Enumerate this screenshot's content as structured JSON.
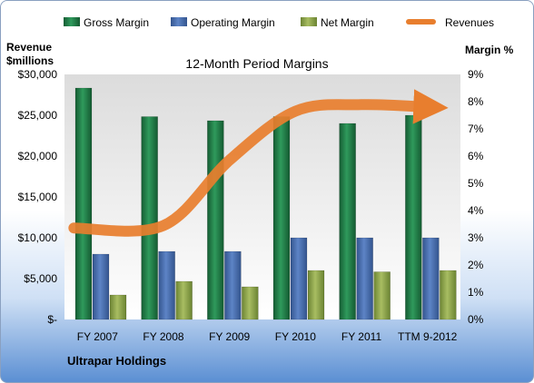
{
  "chart_data": {
    "type": "bar",
    "title": "12-Month Period Margins",
    "footer": "Ultrapar Holdings",
    "left_axis": {
      "label_line1": "Revenue",
      "label_line2": "$millions",
      "ticks": [
        "$-",
        "$5,000",
        "$10,000",
        "$15,000",
        "$20,000",
        "$25,000",
        "$30,000"
      ],
      "range": [
        0,
        30000
      ]
    },
    "right_axis": {
      "label": "Margin %",
      "ticks": [
        "0%",
        "1%",
        "2%",
        "3%",
        "4%",
        "5%",
        "6%",
        "7%",
        "8%",
        "9%"
      ],
      "range": [
        0,
        9
      ]
    },
    "categories": [
      "FY 2007",
      "FY 2008",
      "FY 2009",
      "FY 2010",
      "FY 2011",
      "TTM 9-2012"
    ],
    "series": [
      {
        "name": "Gross Margin",
        "axis": "right",
        "color": "#1e7a45",
        "values": [
          8.5,
          7.45,
          7.3,
          7.45,
          7.2,
          7.5
        ]
      },
      {
        "name": "Operating Margin",
        "axis": "right",
        "color": "#4a6fb0",
        "values": [
          2.4,
          2.5,
          2.5,
          3.0,
          3.0,
          3.0
        ]
      },
      {
        "name": "Net Margin",
        "axis": "right",
        "color": "#8aa04a",
        "values": [
          0.9,
          1.4,
          1.2,
          1.8,
          1.75,
          1.8
        ]
      },
      {
        "name": "Revenues",
        "axis": "left",
        "type": "line",
        "color": "#e87e2e",
        "values": [
          11200,
          11500,
          19500,
          25500,
          26300,
          26000
        ]
      }
    ],
    "grid": false,
    "legend_position": "top"
  }
}
